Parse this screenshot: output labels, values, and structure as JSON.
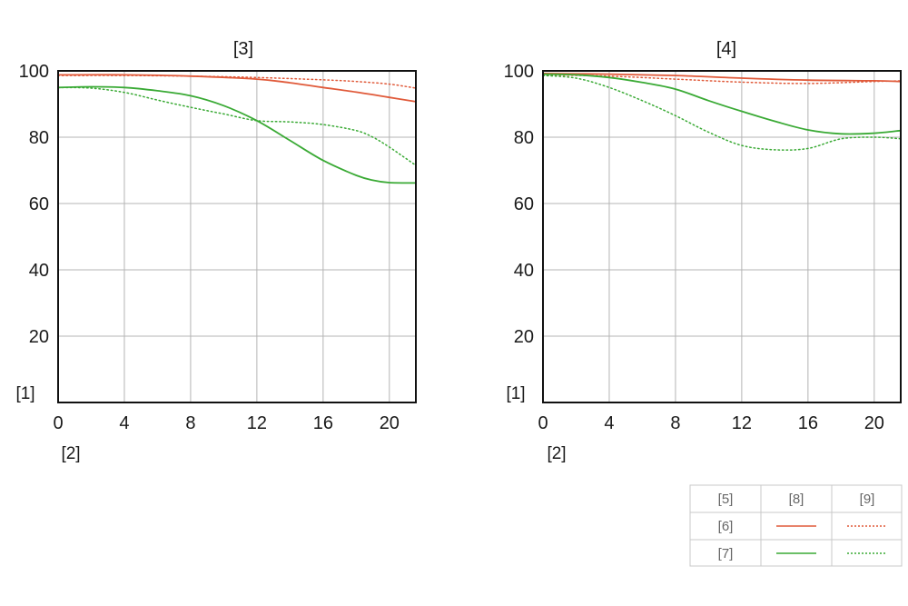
{
  "legend": {
    "col_header": "[5]",
    "solid_header": "[8]",
    "dotted_header": "[9]",
    "rows": [
      {
        "label": "[6]",
        "color": "#e05a3a"
      },
      {
        "label": "[7]",
        "color": "#3aaa35"
      }
    ]
  },
  "chart_data": [
    {
      "type": "line",
      "title": "[3]",
      "xlabel": "[2]",
      "ylabel": "[1]",
      "xlim": [
        0,
        21.6
      ],
      "ylim": [
        0,
        100
      ],
      "xticks": [
        0,
        4,
        8,
        12,
        16,
        20
      ],
      "yticks": [
        20,
        40,
        60,
        80,
        100
      ],
      "grid": true,
      "series": [
        {
          "line": "solid",
          "color": "#e05a3a",
          "x": [
            0,
            4,
            8,
            12,
            14,
            16,
            18,
            20,
            21.6
          ],
          "y": [
            98.8,
            98.8,
            98.4,
            97.5,
            96.4,
            95.0,
            93.6,
            92.0,
            90.7
          ]
        },
        {
          "line": "dotted",
          "color": "#e05a3a",
          "x": [
            0,
            4,
            8,
            12,
            16,
            18,
            20,
            21.6
          ],
          "y": [
            98.6,
            98.6,
            98.4,
            98.0,
            97.3,
            96.8,
            96.0,
            94.8
          ]
        },
        {
          "line": "solid",
          "color": "#3aaa35",
          "x": [
            0,
            2,
            4,
            6,
            8,
            10,
            12,
            14,
            16,
            18,
            19,
            20,
            21.6
          ],
          "y": [
            95.0,
            95.2,
            95.0,
            94.0,
            92.5,
            89.5,
            85.0,
            79.0,
            73.0,
            68.5,
            67.0,
            66.3,
            66.2
          ]
        },
        {
          "line": "dotted",
          "color": "#3aaa35",
          "x": [
            0,
            2,
            4,
            6,
            8,
            10,
            12,
            14,
            16,
            18,
            19,
            20,
            21.6
          ],
          "y": [
            95.0,
            94.8,
            93.5,
            91.2,
            89.0,
            87.0,
            85.0,
            84.6,
            83.8,
            82.0,
            80.0,
            77.0,
            71.5
          ]
        }
      ]
    },
    {
      "type": "line",
      "title": "[4]",
      "xlabel": "[2]",
      "ylabel": "[1]",
      "xlim": [
        0,
        21.6
      ],
      "ylim": [
        0,
        100
      ],
      "xticks": [
        0,
        4,
        8,
        12,
        16,
        20
      ],
      "yticks": [
        20,
        40,
        60,
        80,
        100
      ],
      "grid": true,
      "series": [
        {
          "line": "solid",
          "color": "#e05a3a",
          "x": [
            0,
            4,
            8,
            12,
            16,
            20,
            21.6
          ],
          "y": [
            99.2,
            99.0,
            98.6,
            97.8,
            97.2,
            97.0,
            96.8
          ]
        },
        {
          "line": "dotted",
          "color": "#e05a3a",
          "x": [
            0,
            4,
            8,
            12,
            16,
            20,
            21.6
          ],
          "y": [
            98.8,
            98.4,
            97.5,
            96.6,
            96.2,
            96.8,
            97.0
          ]
        },
        {
          "line": "solid",
          "color": "#3aaa35",
          "x": [
            0,
            2,
            4,
            6,
            8,
            10,
            12,
            14,
            16,
            18,
            20,
            21.6
          ],
          "y": [
            99.0,
            98.8,
            98.0,
            96.5,
            94.5,
            91.0,
            87.8,
            84.8,
            82.2,
            81.0,
            81.2,
            82.0
          ]
        },
        {
          "line": "dotted",
          "color": "#3aaa35",
          "x": [
            0,
            2,
            4,
            6,
            8,
            10,
            12,
            14,
            16,
            18,
            20,
            21.6
          ],
          "y": [
            98.6,
            97.8,
            95.0,
            91.0,
            86.5,
            81.5,
            77.5,
            76.2,
            76.6,
            79.5,
            80.0,
            79.5
          ]
        }
      ]
    }
  ]
}
